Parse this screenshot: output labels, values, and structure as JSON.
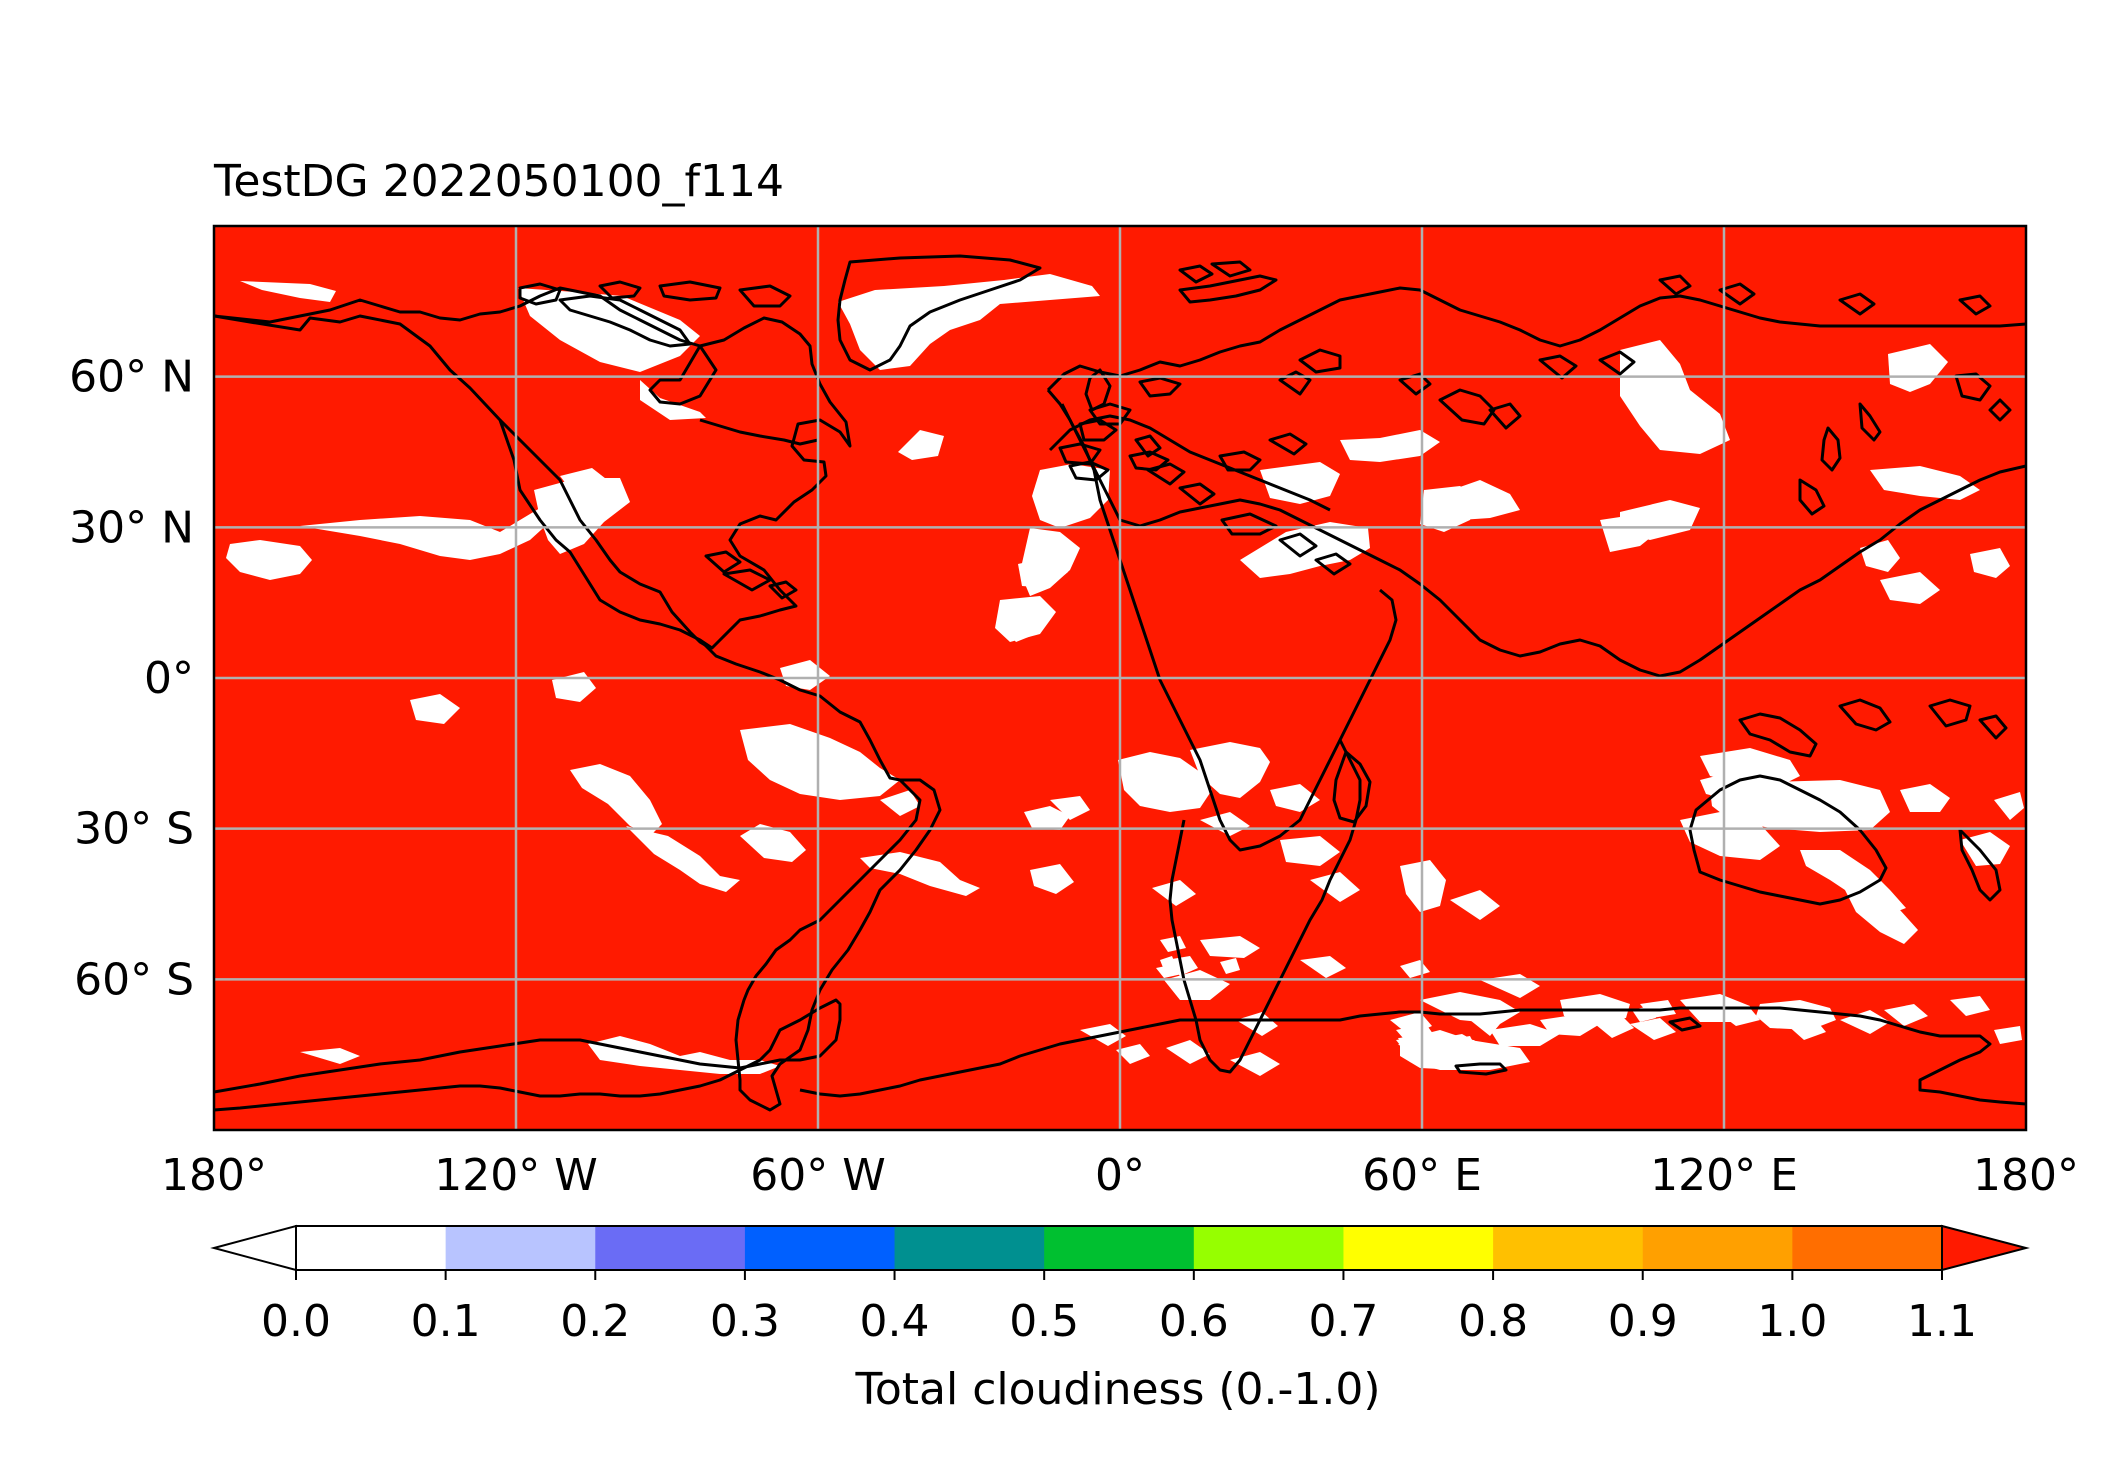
{
  "title": "TestDG 2022050100_f114",
  "map": {
    "background_color": "#ff1a00",
    "clear_color": "#ffffff",
    "coastline_color": "#000000",
    "gridline_color": "#b0b0b0",
    "lat_labels": [
      "60° N",
      "30° N",
      "0°",
      "30° S",
      "60° S"
    ],
    "lat_values": [
      60,
      30,
      0,
      -30,
      -60
    ],
    "lon_labels": [
      "180°",
      "120° W",
      "60° W",
      "0°",
      "60° E",
      "120° E",
      "180°"
    ],
    "lon_values": [
      -180,
      -120,
      -60,
      0,
      60,
      120,
      180
    ],
    "lat_range": [
      -90,
      90
    ],
    "lon_range": [
      -180,
      180
    ]
  },
  "colorbar": {
    "label": "Total cloudiness (0.-1.0)",
    "tick_labels": [
      "0.0",
      "0.1",
      "0.2",
      "0.3",
      "0.4",
      "0.5",
      "0.6",
      "0.7",
      "0.8",
      "0.9",
      "1.0",
      "1.1"
    ],
    "under_color": "#ffffff",
    "over_color": "#ff1a00",
    "colors": [
      "#ffffff",
      "#b8c4ff",
      "#6a6cf5",
      "#0060ff",
      "#009090",
      "#00c030",
      "#96ff00",
      "#ffff00",
      "#ffc000",
      "#ffa000",
      "#ff6e00"
    ]
  }
}
